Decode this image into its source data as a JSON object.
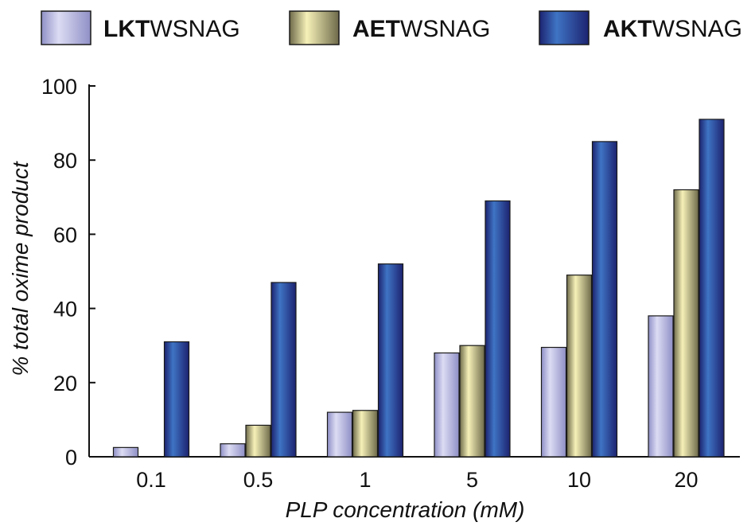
{
  "chart_data": {
    "type": "bar",
    "categories": [
      "0.1",
      "0.5",
      "1",
      "5",
      "10",
      "20"
    ],
    "series": [
      {
        "name_bold": "LKT",
        "name_rest": "WSNAG",
        "name": "LKTWSNAG",
        "values": [
          2.5,
          3.5,
          12,
          28,
          29.5,
          38
        ],
        "color_light": "#dcdcf4",
        "color_dark": "#8f8fc6"
      },
      {
        "name_bold": "AET",
        "name_rest": "WSNAG",
        "name": "AETWSNAG",
        "values": [
          0,
          8.5,
          12.5,
          30,
          49,
          72
        ],
        "color_light": "#f6f1b8",
        "color_dark": "#6e6a4a"
      },
      {
        "name_bold": "AKT",
        "name_rest": "WSNAG",
        "name": "AKTWSNAG",
        "values": [
          31,
          47,
          52,
          69,
          85,
          91
        ],
        "color_light": "#3f74c4",
        "color_dark": "#1c2370"
      }
    ],
    "xlabel": "PLP concentration (mM)",
    "ylabel": "% total oxime product",
    "ylim": [
      0,
      100
    ],
    "yticks": [
      "0",
      "20",
      "40",
      "60",
      "80",
      "100"
    ],
    "grid": false,
    "legend": "top"
  }
}
